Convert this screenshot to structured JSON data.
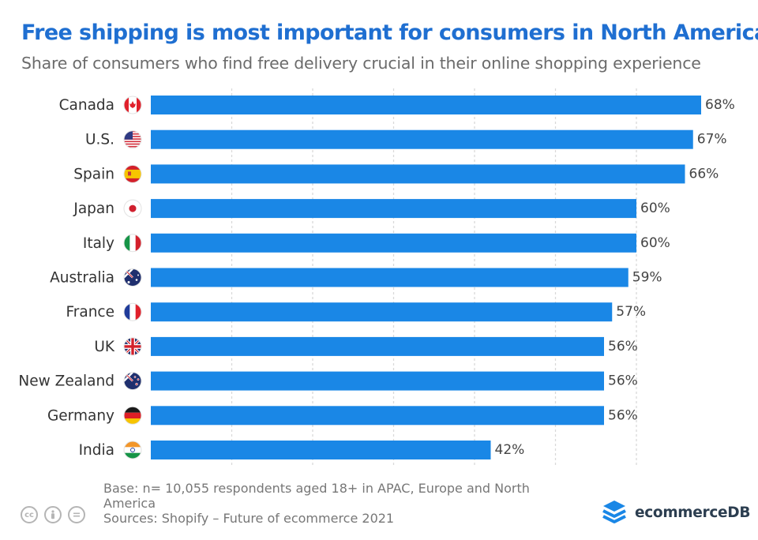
{
  "title": "Free shipping is most important for consumers in North America",
  "subtitle": "Share of consumers who find free delivery crucial in their online shopping experience",
  "chart_data": {
    "type": "bar",
    "orientation": "horizontal",
    "categories": [
      "Canada",
      "U.S.",
      "Spain",
      "Japan",
      "Italy",
      "Australia",
      "France",
      "UK",
      "New Zealand",
      "Germany",
      "India"
    ],
    "values": [
      68,
      67,
      66,
      60,
      60,
      59,
      57,
      56,
      56,
      56,
      42
    ],
    "value_labels": [
      "68%",
      "67%",
      "66%",
      "60%",
      "60%",
      "59%",
      "57%",
      "56%",
      "56%",
      "56%",
      "42%"
    ],
    "unit": "%",
    "xlim": [
      0,
      70
    ],
    "grid": "vertical dashed",
    "bar_color": "#1a87e6"
  },
  "flags": [
    "canada-flag-icon",
    "us-flag-icon",
    "spain-flag-icon",
    "japan-flag-icon",
    "italy-flag-icon",
    "australia-flag-icon",
    "france-flag-icon",
    "uk-flag-icon",
    "new-zealand-flag-icon",
    "germany-flag-icon",
    "india-flag-icon"
  ],
  "footnote": {
    "base": "Base: n= 10,055  respondents aged 18+ in APAC, Europe and North America",
    "sources": "Sources: Shopify – Future of ecommerce 2021"
  },
  "license_icons": [
    "creative-commons-icon",
    "attribution-icon",
    "no-derivatives-icon"
  ],
  "brand": {
    "name": "ecommerceDB",
    "icon": "stacked-layers-logo-icon"
  }
}
